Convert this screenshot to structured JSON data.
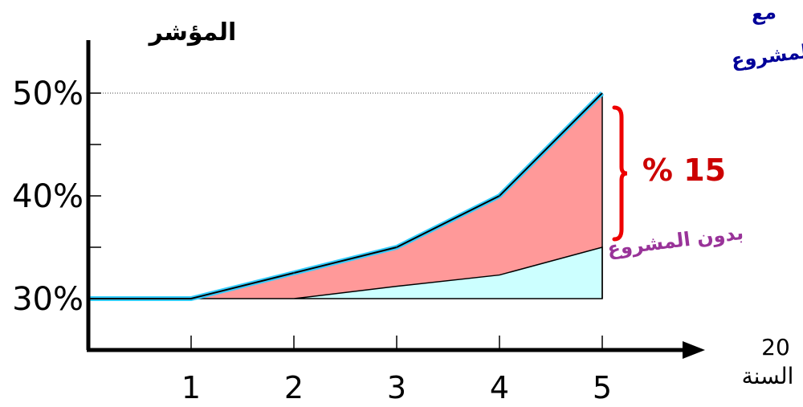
{
  "chart_data": {
    "type": "area",
    "y_title": "المؤشر",
    "x_title": "السنة",
    "x_axis_end_label": "20",
    "x": [
      0,
      1,
      2,
      3,
      4,
      5
    ],
    "x_tick_labels": [
      "1",
      "2",
      "3",
      "4",
      "5"
    ],
    "y_tick_labels": [
      "30%",
      "40%",
      "50%"
    ],
    "y_ticks": [
      30,
      35,
      40,
      45,
      50
    ],
    "ylim": [
      25,
      55
    ],
    "reference_line": 50,
    "series": [
      {
        "name": "مع المشروع",
        "values": [
          30,
          30,
          32.5,
          35,
          40,
          50
        ]
      },
      {
        "name": "بدون المشروع",
        "values": [
          30,
          30,
          30,
          31.2,
          32.3,
          35
        ]
      }
    ],
    "annotation": {
      "text": "15 %",
      "from": 35,
      "to": 50
    },
    "colors": {
      "gain_fill": "#ff9999",
      "without_fill": "#ccffff",
      "with_line": "#33ccff",
      "axis": "#000000",
      "bracket": "#ee0000",
      "with_label": "#000099",
      "without_label": "#993399",
      "diff_label": "#cc0000"
    }
  }
}
